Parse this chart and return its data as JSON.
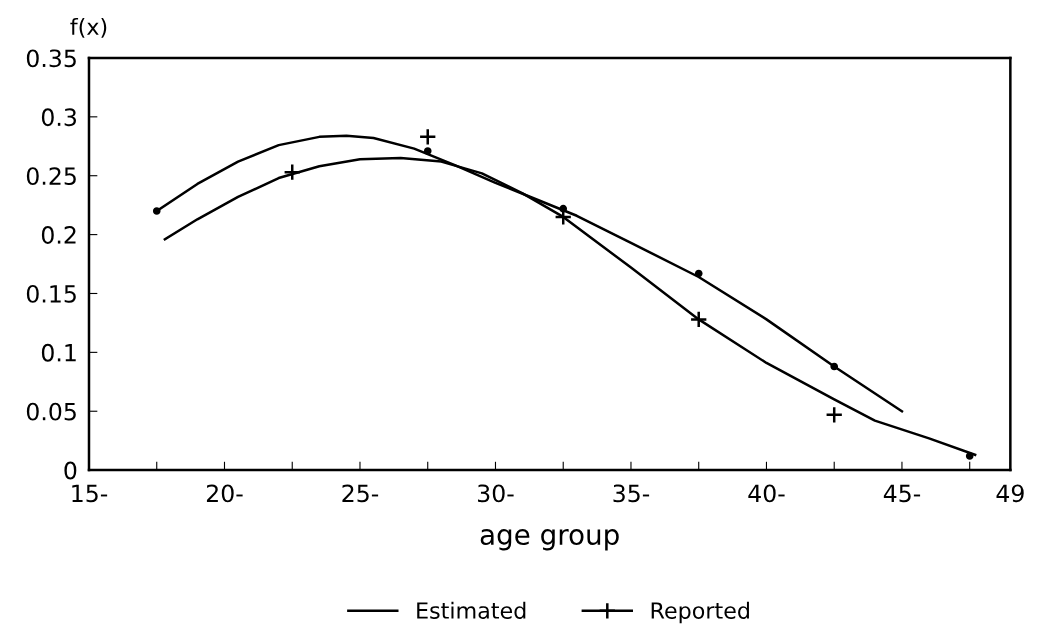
{
  "chart_data": {
    "type": "line",
    "xlabel": "age group",
    "ylabel": "f(x)",
    "xlim": [
      15,
      49
    ],
    "ylim": [
      0,
      0.35
    ],
    "xticks": [
      {
        "value": 15,
        "label": "15-"
      },
      {
        "value": 17.5,
        "label": null
      },
      {
        "value": 20,
        "label": "20-"
      },
      {
        "value": 22.5,
        "label": null
      },
      {
        "value": 25,
        "label": "25-"
      },
      {
        "value": 27.5,
        "label": null
      },
      {
        "value": 30,
        "label": "30-"
      },
      {
        "value": 32.5,
        "label": null
      },
      {
        "value": 35,
        "label": "35-"
      },
      {
        "value": 37.5,
        "label": null
      },
      {
        "value": 40,
        "label": "40-"
      },
      {
        "value": 42.5,
        "label": null
      },
      {
        "value": 45,
        "label": "45-"
      },
      {
        "value": 47.5,
        "label": null
      },
      49
    ],
    "yticks": [
      0,
      0.05,
      0.1,
      0.15,
      0.2,
      0.25,
      0.3,
      0.35
    ],
    "grid": false,
    "legend": "bottom",
    "series": [
      {
        "name": "Estimated",
        "color": "#000000",
        "marker": "none",
        "x": [
          17.5,
          19,
          20.5,
          22,
          23.5,
          24.5,
          25.5,
          27,
          28.5,
          30,
          31.5,
          33,
          35,
          37.5,
          40,
          42.5,
          45
        ],
        "values": [
          0.22,
          0.243,
          0.262,
          0.276,
          0.283,
          0.284,
          0.282,
          0.273,
          0.259,
          0.244,
          0.23,
          0.216,
          0.193,
          0.164,
          0.128,
          0.088,
          0.05
        ]
      },
      {
        "name": "Reported",
        "type": "scatter",
        "color": "#000000",
        "marker": "cross",
        "x": [
          22.5,
          27.5,
          32.5,
          37.5,
          42.5
        ],
        "values": [
          0.253,
          0.283,
          0.215,
          0.128,
          0.047
        ]
      },
      {
        "color": "#000000",
        "marker": "none",
        "x": [
          17.8,
          19,
          20.5,
          22,
          23.5,
          25,
          26.5,
          28,
          29.5,
          31,
          32.5,
          35,
          37.5,
          40,
          42.5,
          44,
          46,
          47.7
        ],
        "values": [
          0.196,
          0.213,
          0.232,
          0.248,
          0.258,
          0.264,
          0.265,
          0.262,
          0.252,
          0.235,
          0.215,
          0.172,
          0.128,
          0.091,
          0.06,
          0.042,
          0.027,
          0.013
        ]
      },
      {
        "type": "scatter",
        "color": "#000000",
        "marker": "circle",
        "x": [
          17.5,
          27.5,
          32.5,
          37.5,
          42.5,
          47.5
        ],
        "values": [
          0.22,
          0.271,
          0.222,
          0.167,
          0.088,
          0.012
        ]
      }
    ]
  }
}
